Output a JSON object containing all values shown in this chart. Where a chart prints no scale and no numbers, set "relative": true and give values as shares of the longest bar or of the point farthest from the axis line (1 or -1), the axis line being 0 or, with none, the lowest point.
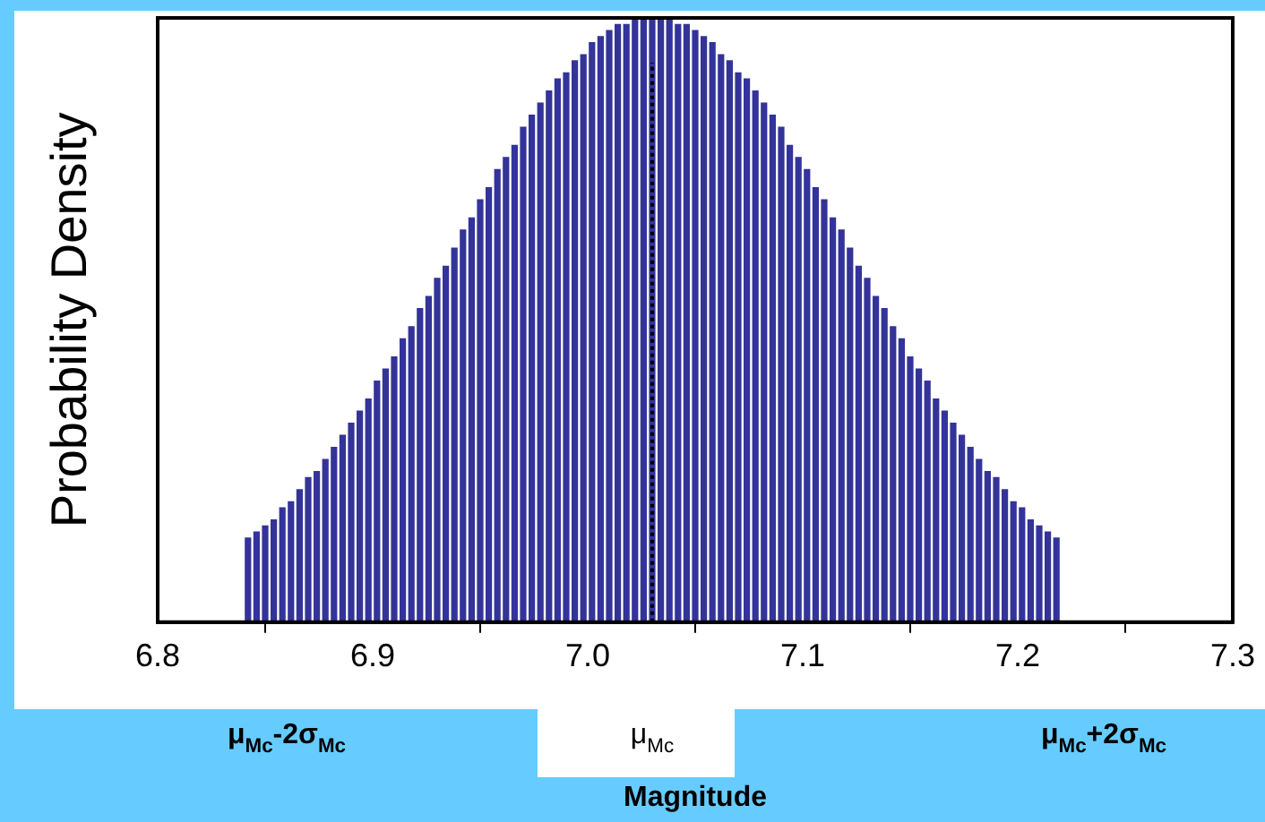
{
  "chart_data": {
    "type": "bar",
    "relative": true,
    "xlabel": "Magnitude",
    "ylabel": "Probability Density",
    "color": "#333399",
    "x": [
      6.842,
      6.846,
      6.85,
      6.854,
      6.858,
      6.862,
      6.866,
      6.87,
      6.874,
      6.878,
      6.882,
      6.886,
      6.89,
      6.894,
      6.898,
      6.902,
      6.906,
      6.91,
      6.914,
      6.918,
      6.922,
      6.926,
      6.93,
      6.934,
      6.938,
      6.942,
      6.946,
      6.95,
      6.954,
      6.958,
      6.962,
      6.966,
      6.97,
      6.974,
      6.978,
      6.982,
      6.986,
      6.99,
      6.994,
      6.998,
      7.002,
      7.006,
      7.01,
      7.014,
      7.018,
      7.022,
      7.026,
      7.03,
      7.034,
      7.038,
      7.042,
      7.046,
      7.05,
      7.054,
      7.058,
      7.062,
      7.066,
      7.07,
      7.074,
      7.078,
      7.082,
      7.086,
      7.09,
      7.094,
      7.098,
      7.102,
      7.106,
      7.11,
      7.114,
      7.118,
      7.122,
      7.126,
      7.13,
      7.134,
      7.138,
      7.142,
      7.146,
      7.15,
      7.154,
      7.158,
      7.162,
      7.166,
      7.17,
      7.174,
      7.178,
      7.182,
      7.186,
      7.19,
      7.194,
      7.198,
      7.202,
      7.206,
      7.21,
      7.214,
      7.218
    ],
    "values": [
      0.14,
      0.15,
      0.16,
      0.17,
      0.19,
      0.2,
      0.22,
      0.24,
      0.25,
      0.27,
      0.29,
      0.31,
      0.33,
      0.35,
      0.37,
      0.4,
      0.42,
      0.44,
      0.47,
      0.49,
      0.52,
      0.54,
      0.57,
      0.59,
      0.62,
      0.65,
      0.67,
      0.7,
      0.72,
      0.75,
      0.77,
      0.79,
      0.82,
      0.84,
      0.86,
      0.88,
      0.9,
      0.91,
      0.93,
      0.94,
      0.96,
      0.97,
      0.98,
      0.99,
      0.99,
      1.0,
      1.0,
      1.0,
      1.0,
      1.0,
      0.99,
      0.99,
      0.98,
      0.97,
      0.96,
      0.94,
      0.93,
      0.91,
      0.9,
      0.88,
      0.86,
      0.84,
      0.82,
      0.79,
      0.77,
      0.75,
      0.72,
      0.7,
      0.67,
      0.65,
      0.62,
      0.59,
      0.57,
      0.54,
      0.52,
      0.49,
      0.47,
      0.44,
      0.42,
      0.4,
      0.37,
      0.35,
      0.33,
      0.31,
      0.29,
      0.27,
      0.25,
      0.24,
      0.22,
      0.2,
      0.19,
      0.17,
      0.16,
      0.15,
      0.14
    ],
    "xlim": [
      6.8,
      7.3
    ],
    "xticks": [
      {
        "value": 6.8,
        "label": "6.8"
      },
      {
        "value": 6.9,
        "label": "6.9"
      },
      {
        "value": 7,
        "label": "7.0"
      },
      {
        "value": 7.1,
        "label": "7.1"
      },
      {
        "value": 7.2,
        "label": "7.2"
      },
      {
        "value": 7.3,
        "label": "7.3"
      }
    ],
    "ref_lines": [
      {
        "axis": "x",
        "value": 7.03,
        "label": "μ$_{Mc}$",
        "color": "#000000",
        "line_style": "dotted"
      }
    ],
    "annotations": [
      "μ$_{Mc}$-2σ$_{Mc}$",
      "μ$_{Mc}$+2σ$_{Mc}$"
    ],
    "legend": false
  }
}
